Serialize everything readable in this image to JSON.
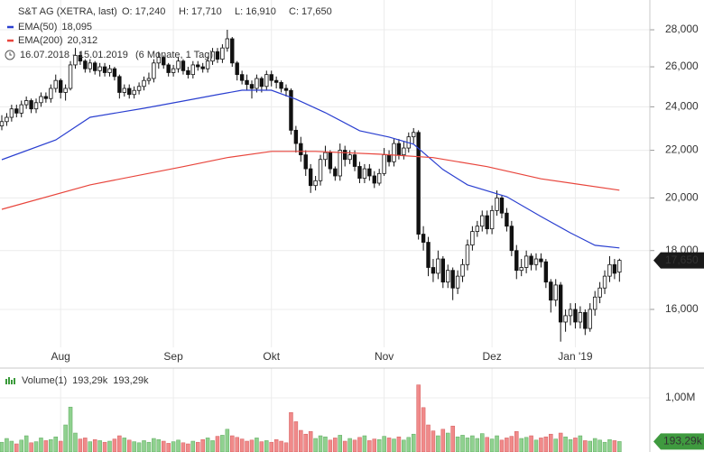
{
  "chart_data": {
    "type": "candlestick",
    "header": {
      "instrument": "S&T AG (XETRA, last)",
      "open_label": "O: 17,240",
      "high_label": "H: 17,710",
      "low_label": "L: 16,910",
      "close_label": "C: 17,650",
      "period": "16.07.2018 - 15.01.2019",
      "span": "(6 Monate, 1 Tag)"
    },
    "log": true,
    "grid": true,
    "ylim": [
      14830,
      29720
    ],
    "yticks": [
      {
        "value": 16000,
        "label": "16,000"
      },
      {
        "value": 18000,
        "label": "18,000"
      },
      {
        "value": 20000,
        "label": "20,000"
      },
      {
        "value": 22000,
        "label": "22,000"
      },
      {
        "value": 24000,
        "label": "24,000"
      },
      {
        "value": 26000,
        "label": "26,000"
      },
      {
        "value": 28000,
        "label": "28,000"
      }
    ],
    "xlim": [
      -0.37,
      132.2
    ],
    "xticks": [
      {
        "value": 12,
        "label": "Aug"
      },
      {
        "value": 35,
        "label": "Sep"
      },
      {
        "value": 55,
        "label": "Okt"
      },
      {
        "value": 78,
        "label": "Nov"
      },
      {
        "value": 100,
        "label": "Dez"
      },
      {
        "value": 117,
        "label": "Jan '19"
      }
    ],
    "candle_color": "#111111",
    "up_fill": "#ffffff",
    "last_price_label": "17,650",
    "open": [
      23100,
      23300,
      23500,
      23900,
      23700,
      24100,
      24300,
      23900,
      24200,
      24500,
      24400,
      24900,
      25300,
      24700,
      24900,
      26100,
      26600,
      26300,
      25900,
      26200,
      25800,
      26000,
      25700,
      25900,
      25500,
      24700,
      24900,
      24600,
      24800,
      25000,
      25300,
      25400,
      26200,
      26500,
      26100,
      25700,
      25900,
      26300,
      25800,
      25600,
      26100,
      26000,
      25900,
      26300,
      26800,
      26400,
      27000,
      27500,
      26200,
      25600,
      25300,
      25100,
      24900,
      25400,
      25000,
      25600,
      25300,
      25200,
      24900,
      24800,
      22900,
      22300,
      21800,
      21200,
      20500,
      20700,
      21600,
      21900,
      21200,
      20900,
      22000,
      21600,
      21800,
      21300,
      20800,
      21200,
      20900,
      20600,
      21000,
      21800,
      21500,
      22300,
      21800,
      22100,
      22600,
      22800,
      18600,
      18300,
      17400,
      17200,
      17700,
      16900,
      17300,
      16700,
      17100,
      17500,
      18200,
      18700,
      18900,
      19300,
      18800,
      19500,
      20000,
      19400,
      18900,
      18000,
      17300,
      17400,
      17800,
      17500,
      17700,
      17600,
      16900,
      16300,
      16800,
      15600,
      15800,
      16000,
      15600,
      15900,
      15400,
      16000,
      16400,
      16700,
      17100,
      17500,
      17240
    ],
    "high": [
      23600,
      23700,
      24100,
      24100,
      24300,
      24500,
      24400,
      24400,
      24700,
      24700,
      25100,
      25600,
      25400,
      25100,
      26300,
      27000,
      26800,
      26400,
      26400,
      26300,
      26200,
      26200,
      26100,
      26000,
      25600,
      25100,
      25100,
      25000,
      25200,
      25500,
      25700,
      26400,
      26800,
      26600,
      26200,
      26100,
      26500,
      26400,
      26000,
      26300,
      26300,
      26200,
      26500,
      27000,
      27000,
      27200,
      28000,
      27600,
      26300,
      25800,
      25600,
      25300,
      25600,
      25500,
      25800,
      25800,
      25500,
      25300,
      25100,
      24900,
      23100,
      22600,
      22000,
      21400,
      20900,
      21800,
      22200,
      22000,
      21300,
      22300,
      22200,
      22000,
      22000,
      21500,
      21400,
      21400,
      21100,
      21200,
      22100,
      22000,
      22500,
      22500,
      22400,
      22800,
      23000,
      22900,
      18900,
      18500,
      17700,
      18000,
      17800,
      17500,
      17400,
      17300,
      17700,
      18400,
      18900,
      19100,
      19500,
      19500,
      19700,
      20300,
      20100,
      19600,
      19100,
      18200,
      17700,
      18000,
      17900,
      17900,
      17900,
      17700,
      17000,
      17000,
      16900,
      16000,
      16200,
      16200,
      16100,
      16000,
      16200,
      16600,
      16900,
      17300,
      17800,
      17700,
      17710
    ],
    "low": [
      22900,
      23100,
      23300,
      23500,
      23500,
      23900,
      23700,
      23700,
      24000,
      24200,
      24200,
      24700,
      24400,
      24300,
      24800,
      25900,
      26100,
      25700,
      25700,
      25600,
      25500,
      25500,
      25500,
      25300,
      24400,
      24500,
      24400,
      24400,
      24600,
      24800,
      25100,
      25200,
      25900,
      25900,
      25500,
      25500,
      25700,
      25600,
      25400,
      25400,
      25800,
      25700,
      25700,
      26100,
      26200,
      26200,
      26800,
      26000,
      25300,
      25100,
      24800,
      24400,
      24700,
      24700,
      24800,
      25000,
      24900,
      24700,
      24500,
      22700,
      21900,
      21500,
      20900,
      20200,
      20300,
      20500,
      21300,
      21000,
      20700,
      20700,
      21300,
      21400,
      21100,
      20600,
      20600,
      20700,
      20400,
      20500,
      20900,
      21300,
      21300,
      21600,
      21600,
      21900,
      22300,
      18400,
      18000,
      17100,
      16900,
      17000,
      16700,
      16700,
      16300,
      16500,
      16900,
      17300,
      18000,
      18500,
      18700,
      18600,
      18600,
      19300,
      19200,
      18700,
      17800,
      17000,
      17100,
      17200,
      17300,
      17300,
      17400,
      16700,
      15900,
      16100,
      15000,
      15300,
      15500,
      15400,
      15400,
      15200,
      15300,
      15800,
      16200,
      16500,
      16900,
      17000,
      16910
    ],
    "close": [
      23300,
      23500,
      23900,
      23700,
      24100,
      24300,
      23900,
      24200,
      24500,
      24400,
      24900,
      25300,
      24700,
      24900,
      26100,
      26600,
      26300,
      25900,
      26200,
      25800,
      26000,
      25700,
      25900,
      25500,
      24700,
      24900,
      24600,
      24800,
      25000,
      25300,
      25400,
      26200,
      26500,
      26100,
      25700,
      25900,
      26300,
      25800,
      25600,
      26100,
      26000,
      25900,
      26300,
      26800,
      26400,
      27000,
      27500,
      26200,
      25600,
      25300,
      25100,
      24900,
      25400,
      25000,
      25600,
      25300,
      25200,
      24900,
      24800,
      22900,
      22300,
      21800,
      21200,
      20500,
      20700,
      21600,
      21900,
      21200,
      20900,
      22000,
      21600,
      21800,
      21300,
      20800,
      21200,
      20900,
      20600,
      21000,
      21800,
      21500,
      22300,
      21800,
      22100,
      22600,
      22800,
      18600,
      18300,
      17400,
      17200,
      17700,
      16900,
      17300,
      16700,
      17100,
      17500,
      18200,
      18700,
      18900,
      19300,
      18800,
      19500,
      20000,
      19400,
      18900,
      18000,
      17300,
      17400,
      17800,
      17500,
      17700,
      17600,
      16900,
      16300,
      16800,
      15600,
      15800,
      16000,
      15600,
      15900,
      15400,
      16000,
      16400,
      16700,
      17100,
      17500,
      17200,
      17650
    ],
    "series": [
      {
        "name": "EMA(50)",
        "last_label": "18,095",
        "color": "#2a3fd0",
        "x": [
          0,
          11,
          18,
          29,
          37,
          44,
          49,
          55,
          60,
          66,
          73,
          79,
          84,
          90,
          95,
          103,
          110,
          116,
          121,
          126
        ],
        "values": [
          21590,
          22460,
          23500,
          23930,
          24280,
          24590,
          24810,
          24810,
          24370,
          23720,
          22880,
          22590,
          22270,
          21170,
          20530,
          20050,
          19270,
          18650,
          18190,
          18095
        ]
      },
      {
        "name": "EMA(200)",
        "last_label": "20,312",
        "color": "#e8453c",
        "x": [
          0,
          18,
          37,
          46,
          55,
          64,
          77,
          88,
          99,
          110,
          126
        ],
        "values": [
          19550,
          20530,
          21290,
          21680,
          21950,
          21950,
          21830,
          21680,
          21290,
          20780,
          20312
        ]
      }
    ],
    "volume": {
      "name": "Volume(1)",
      "last_label": "193,29k",
      "last_label_2": "193,29k",
      "color": "#3a9a3a",
      "up_color": "#8fd18f",
      "down_color": "#f08a8a",
      "vlim": [
        0,
        1550000
      ],
      "vticks": [
        {
          "value": 1000000,
          "label": "1,00M"
        }
      ],
      "values": [
        180000,
        250000,
        200000,
        150000,
        220000,
        300000,
        170000,
        190000,
        260000,
        210000,
        230000,
        280000,
        200000,
        500000,
        830000,
        350000,
        240000,
        260000,
        190000,
        230000,
        210000,
        180000,
        200000,
        240000,
        300000,
        260000,
        220000,
        190000,
        170000,
        210000,
        180000,
        250000,
        230000,
        200000,
        160000,
        190000,
        220000,
        170000,
        150000,
        200000,
        180000,
        230000,
        260000,
        210000,
        290000,
        310000,
        420000,
        300000,
        270000,
        240000,
        200000,
        220000,
        260000,
        190000,
        210000,
        180000,
        230000,
        200000,
        170000,
        730000,
        560000,
        400000,
        330000,
        380000,
        250000,
        300000,
        280000,
        220000,
        260000,
        310000,
        200000,
        250000,
        220000,
        270000,
        300000,
        210000,
        240000,
        230000,
        290000,
        260000,
        240000,
        280000,
        220000,
        270000,
        330000,
        1240000,
        820000,
        500000,
        390000,
        300000,
        420000,
        350000,
        480000,
        280000,
        310000,
        260000,
        300000,
        250000,
        340000,
        270000,
        240000,
        300000,
        220000,
        260000,
        290000,
        380000,
        250000,
        270000,
        300000,
        220000,
        260000,
        280000,
        330000,
        240000,
        350000,
        280000,
        230000,
        260000,
        300000,
        210000,
        200000,
        250000,
        220000,
        180000,
        230000,
        210000,
        193290
      ]
    }
  }
}
